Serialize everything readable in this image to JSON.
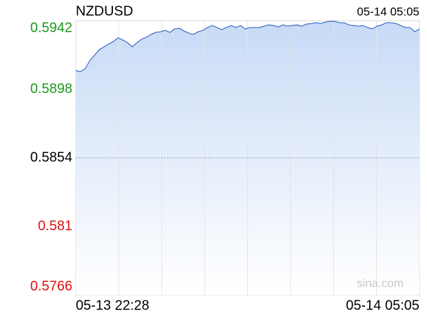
{
  "chart_data": {
    "type": "line",
    "title": "NZDUSD",
    "time": "05-14 05:05",
    "watermark": "sina.com",
    "color": "#3a6bc0",
    "area_color": "#c7daf6",
    "values": [
      0.591,
      0.59093,
      0.59111,
      0.59164,
      0.59199,
      0.59234,
      0.59252,
      0.5927,
      0.59287,
      0.5931,
      0.59296,
      0.59279,
      0.59252,
      0.59279,
      0.59301,
      0.59314,
      0.59332,
      0.59345,
      0.59349,
      0.59358,
      0.59345,
      0.59367,
      0.59371,
      0.59354,
      0.5934,
      0.59332,
      0.59349,
      0.59358,
      0.59376,
      0.59389,
      0.59376,
      0.59363,
      0.59376,
      0.59389,
      0.59376,
      0.59389,
      0.59367,
      0.59376,
      0.59376,
      0.59376,
      0.59385,
      0.59393,
      0.59389,
      0.5938,
      0.59393,
      0.59385,
      0.59389,
      0.59393,
      0.59385,
      0.59398,
      0.59402,
      0.59407,
      0.59402,
      0.59411,
      0.59416,
      0.59416,
      0.59407,
      0.59407,
      0.59393,
      0.59389,
      0.59385,
      0.59389,
      0.59376,
      0.59367,
      0.59385,
      0.59393,
      0.59407,
      0.59407,
      0.59402,
      0.59389,
      0.59376,
      0.59376,
      0.59349,
      0.59367
    ],
    "xlim": [
      0,
      73
    ],
    "xticks": [
      {
        "value": 0,
        "label": "05-13 22:28"
      },
      {
        "value": 73,
        "label": "05-14 05:05"
      }
    ],
    "ylim": [
      0.5766,
      0.5942
    ],
    "yticks": [
      0.5942,
      0.5898,
      0.5854,
      0.581,
      0.5766
    ],
    "ytick_colors": [
      "#1a9a1a",
      "#1a9a1a",
      "#000000",
      "#e01010",
      "#e01010"
    ],
    "grid": true
  }
}
